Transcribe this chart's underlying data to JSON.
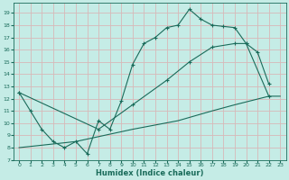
{
  "xlabel": "Humidex (Indice chaleur)",
  "xlim": [
    -0.5,
    23.5
  ],
  "ylim": [
    7,
    19.8
  ],
  "xticks": [
    0,
    1,
    2,
    3,
    4,
    5,
    6,
    7,
    8,
    9,
    10,
    11,
    12,
    13,
    14,
    15,
    16,
    17,
    18,
    19,
    20,
    21,
    22,
    23
  ],
  "yticks": [
    7,
    8,
    9,
    10,
    11,
    12,
    13,
    14,
    15,
    16,
    17,
    18,
    19
  ],
  "bg_color": "#c5ece6",
  "grid_color": "#d8b8b8",
  "line_color": "#1a6b5a",
  "line1_x": [
    0,
    1,
    2,
    3,
    4,
    5,
    6,
    7,
    8,
    9,
    10,
    11,
    12,
    13,
    14,
    15,
    16,
    17,
    18,
    19,
    20,
    21,
    22
  ],
  "line1_y": [
    12.5,
    11.0,
    9.5,
    8.5,
    8.0,
    8.5,
    7.5,
    10.2,
    9.5,
    11.8,
    14.8,
    16.5,
    17.0,
    17.8,
    18.0,
    19.3,
    18.5,
    18.0,
    17.9,
    17.8,
    16.5,
    15.8,
    13.2
  ],
  "line2_x": [
    0,
    7,
    10,
    13,
    15,
    17,
    19,
    20,
    22
  ],
  "line2_y": [
    12.5,
    9.5,
    11.5,
    13.5,
    15.0,
    16.2,
    16.5,
    16.5,
    12.2
  ],
  "line3_x": [
    0,
    5,
    10,
    14,
    17,
    19,
    22,
    23
  ],
  "line3_y": [
    8.0,
    8.5,
    9.5,
    10.2,
    11.0,
    11.5,
    12.2,
    12.2
  ]
}
